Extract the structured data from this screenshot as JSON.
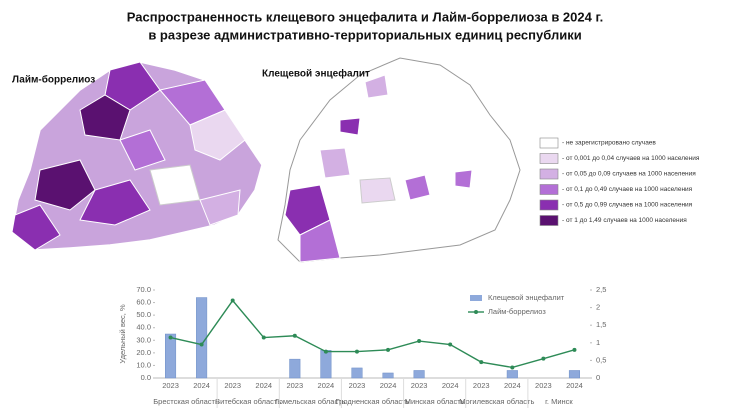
{
  "header": {
    "title_line1": "Распространенность клещевого энцефалита и Лайм-боррелиоза в 2024 г.",
    "title_line2": "в разрезе административно-территориальных единиц республики"
  },
  "maps": [
    {
      "label": "Лайм-боррелиоз"
    },
    {
      "label": "Клещевой энцефалит"
    }
  ],
  "legend": [
    {
      "label": "- не зарегистрировано случаев",
      "color": "#ffffff"
    },
    {
      "label": "- от 0,001 до 0,04 случаев на 1000 населения",
      "color": "#ead8f0"
    },
    {
      "label": "- от 0,05 до 0,09 случаев на 1000 населения",
      "color": "#d3b0e3"
    },
    {
      "label": "- от 0,1 до 0,49 случаев на 1000 населения",
      "color": "#b36fd6"
    },
    {
      "label": "- от 0,5 до 0,99 случаев на 1000 населения",
      "color": "#8a2fb0"
    },
    {
      "label": "- от 1 до 1,49 случаев на 1000 населения",
      "color": "#5a1170"
    }
  ],
  "chart_data": {
    "type": "bar",
    "ylabel": "Удельный вес, %",
    "categories": [
      "2023",
      "2024",
      "2023",
      "2024",
      "2023",
      "2024",
      "2023",
      "2024",
      "2023",
      "2024",
      "2023",
      "2024",
      "2023",
      "2024"
    ],
    "groups": [
      "Брестская область",
      "Витебская область",
      "Гомельская область",
      "Гродненская область",
      "Минская область",
      "Могилевская область",
      "г. Минск"
    ],
    "series": [
      {
        "name": "Клещевой энцефалит",
        "type": "bar",
        "color": "#8ea9db",
        "values": [
          35,
          64,
          0,
          0,
          15,
          22,
          8,
          4,
          6,
          0,
          0,
          6,
          0,
          6
        ]
      },
      {
        "name": "Лайм-боррелиоз",
        "type": "line",
        "axis": "y2",
        "color": "#2e8b57",
        "values": [
          1.15,
          0.95,
          2.2,
          1.15,
          1.2,
          0.75,
          0.75,
          0.8,
          1.05,
          0.95,
          0.45,
          0.3,
          0.55,
          0.8
        ]
      }
    ],
    "ylim": [
      0,
      70
    ],
    "yticks": [
      {
        "value": 0,
        "label": "0.0"
      },
      {
        "value": 10,
        "label": "10.0"
      },
      {
        "value": 20,
        "label": "20.0"
      },
      {
        "value": 30,
        "label": "30.0"
      },
      {
        "value": 40,
        "label": "40.0"
      },
      {
        "value": 50,
        "label": "50.0"
      },
      {
        "value": 60,
        "label": "60.0"
      },
      {
        "value": 70,
        "label": "70.0"
      }
    ],
    "y2lim": [
      0,
      2.5
    ],
    "y2ticks": [
      0,
      {
        "value": 0.5,
        "label": "0,5"
      },
      1,
      {
        "value": 1.5,
        "label": "1,5"
      },
      2,
      {
        "value": 2.5,
        "label": "2,5"
      }
    ],
    "grid": false
  }
}
